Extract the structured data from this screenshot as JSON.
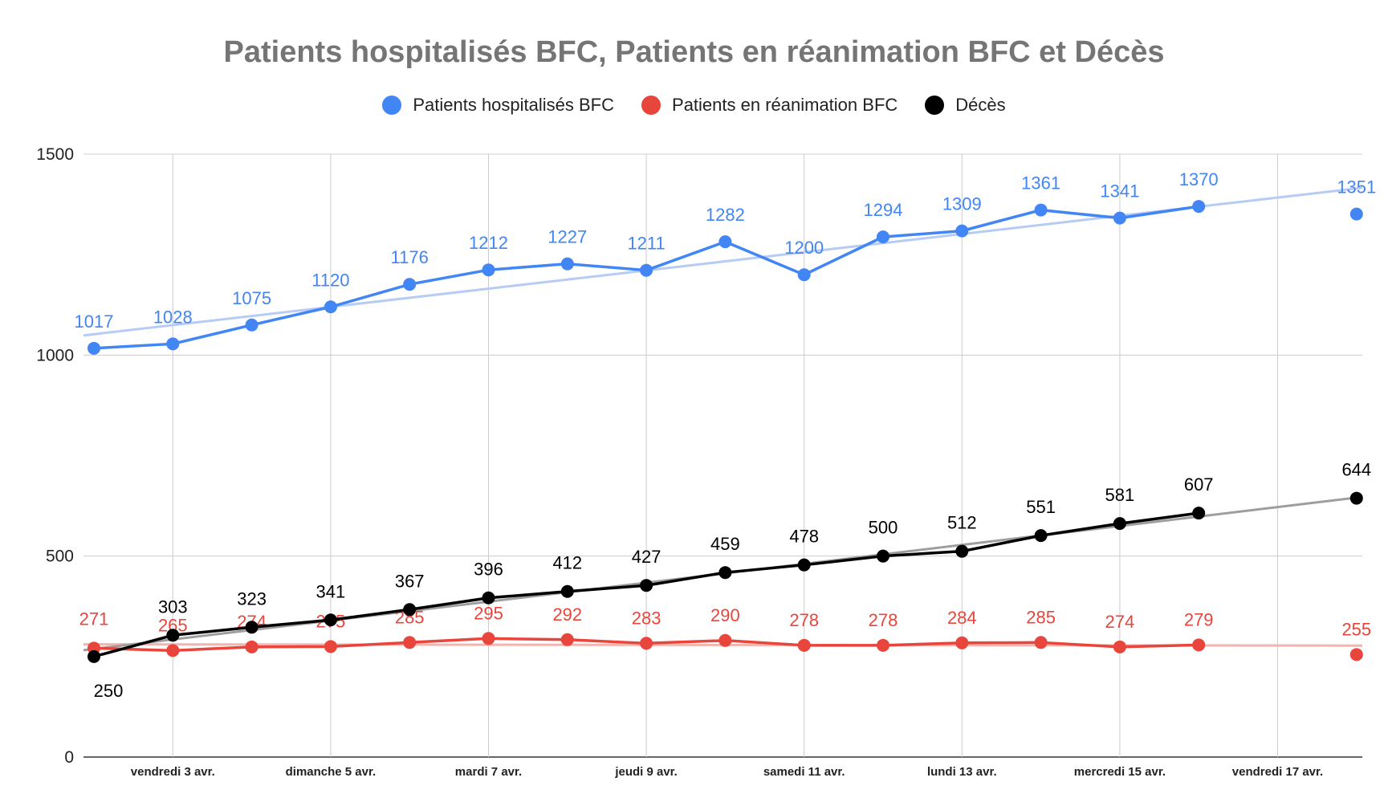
{
  "chart_data": {
    "type": "line",
    "title": "Patients hospitalisés BFC, Patients en réanimation BFC et Décès",
    "xlabel": "",
    "ylabel": "",
    "ylim": [
      0,
      1500
    ],
    "yticks": [
      "0",
      "500",
      "1000",
      "1500"
    ],
    "x_ticks": [
      "vendredi 3 avr.",
      "dimanche 5 avr.",
      "mardi 7 avr.",
      "jeudi 9 avr.",
      "samedi 11 avr.",
      "lundi 13 avr.",
      "mercredi 15 avr.",
      "vendredi 17 avr."
    ],
    "grid": true,
    "legend_position": "top",
    "trendlines": true,
    "series": [
      {
        "name": "Patients hospitalisés BFC",
        "color": "#4285F4",
        "trend_color": "#B7CCF5",
        "values": [
          1017,
          1028,
          1075,
          1120,
          1176,
          1212,
          1227,
          1211,
          1282,
          1200,
          1294,
          1309,
          1361,
          1341,
          1370,
          null,
          1351
        ]
      },
      {
        "name": "Patients en réanimation BFC",
        "color": "#E8453C",
        "trend_color": "#F3B4AE",
        "values": [
          271,
          265,
          274,
          275,
          285,
          295,
          292,
          283,
          290,
          278,
          278,
          284,
          285,
          274,
          279,
          null,
          255
        ]
      },
      {
        "name": "Décès",
        "color": "#000000",
        "trend_color": "#9E9E9E",
        "values": [
          250,
          303,
          323,
          341,
          367,
          396,
          412,
          427,
          459,
          478,
          500,
          512,
          551,
          581,
          607,
          null,
          644
        ]
      }
    ]
  }
}
